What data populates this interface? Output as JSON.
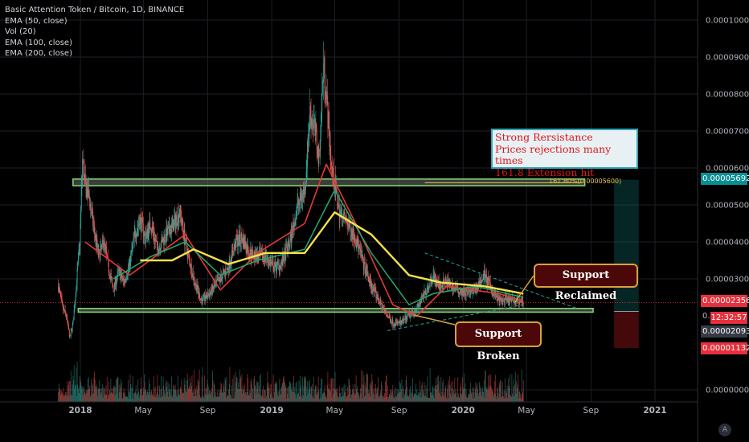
{
  "header": {
    "title": "Basic Attention Token / Bitcoin, 1D, BINANCE",
    "indicators": [
      "EMA (50, close)",
      "Vol (20)",
      "EMA (100, close)",
      "EMA (200, close)"
    ]
  },
  "chart_data": {
    "type": "candlestick",
    "pair": "BAT/BTC",
    "interval": "1D",
    "exchange": "BINANCE",
    "y_axis": {
      "ticks": [
        "0.00010000",
        "0.00009000",
        "0.00008000",
        "0.00007000",
        "0.00006000",
        "0.00005000",
        "0.00004000",
        "0.00003000",
        "0.00000000"
      ],
      "ylim": [
        5e-07,
        0.000104
      ]
    },
    "x_axis": {
      "labels": [
        "2018",
        "May",
        "Sep",
        "2019",
        "May",
        "Sep",
        "2020",
        "May",
        "Sep",
        "2021"
      ]
    },
    "price_path": [
      [
        "2017-11-20",
        2.8e-05
      ],
      [
        "2017-11-28",
        2.2e-05
      ],
      [
        "2017-12-05",
        2e-05
      ],
      [
        "2017-12-12",
        1.4e-05
      ],
      [
        "2017-12-18",
        1.8e-05
      ],
      [
        "2017-12-24",
        2.8e-05
      ],
      [
        "2017-12-31",
        4e-05
      ],
      [
        "2018-01-05",
        6.2e-05
      ],
      [
        "2018-01-10",
        5.5e-05
      ],
      [
        "2018-01-18",
        5.2e-05
      ],
      [
        "2018-01-25",
        4.5e-05
      ],
      [
        "2018-02-05",
        3.6e-05
      ],
      [
        "2018-02-15",
        4e-05
      ],
      [
        "2018-02-25",
        3.2e-05
      ],
      [
        "2018-03-05",
        2.7e-05
      ],
      [
        "2018-03-15",
        3.2e-05
      ],
      [
        "2018-03-25",
        2.9e-05
      ],
      [
        "2018-04-05",
        3.4e-05
      ],
      [
        "2018-04-15",
        4.2e-05
      ],
      [
        "2018-04-25",
        4.6e-05
      ],
      [
        "2018-05-05",
        4.1e-05
      ],
      [
        "2018-05-15",
        4.5e-05
      ],
      [
        "2018-05-28",
        3.8e-05
      ],
      [
        "2018-06-10",
        4.1e-05
      ],
      [
        "2018-06-25",
        4.4e-05
      ],
      [
        "2018-07-10",
        4.8e-05
      ],
      [
        "2018-07-20",
        4e-05
      ],
      [
        "2018-08-05",
        3e-05
      ],
      [
        "2018-08-20",
        2.4e-05
      ],
      [
        "2018-09-05",
        2.6e-05
      ],
      [
        "2018-09-25",
        3e-05
      ],
      [
        "2018-10-10",
        3.3e-05
      ],
      [
        "2018-10-25",
        4e-05
      ],
      [
        "2018-11-05",
        4.1e-05
      ],
      [
        "2018-11-20",
        3.7e-05
      ],
      [
        "2018-12-05",
        3.6e-05
      ],
      [
        "2018-12-20",
        3.6e-05
      ],
      [
        "2019-01-05",
        3.3e-05
      ],
      [
        "2019-01-20",
        3.4e-05
      ],
      [
        "2019-02-05",
        4e-05
      ],
      [
        "2019-02-20",
        5e-05
      ],
      [
        "2019-03-05",
        5.4e-05
      ],
      [
        "2019-03-15",
        7.5e-05
      ],
      [
        "2019-03-25",
        7e-05
      ],
      [
        "2019-04-01",
        6.2e-05
      ],
      [
        "2019-04-10",
        8.8e-05
      ],
      [
        "2019-04-15",
        8e-05
      ],
      [
        "2019-04-25",
        6e-05
      ],
      [
        "2019-05-10",
        4.8e-05
      ],
      [
        "2019-05-25",
        4.5e-05
      ],
      [
        "2019-06-10",
        4.1e-05
      ],
      [
        "2019-06-25",
        3.4e-05
      ],
      [
        "2019-07-10",
        2.8e-05
      ],
      [
        "2019-07-25",
        2.4e-05
      ],
      [
        "2019-08-05",
        2.1e-05
      ],
      [
        "2019-08-20",
        1.8e-05
      ],
      [
        "2019-09-05",
        1.8e-05
      ],
      [
        "2019-09-20",
        2e-05
      ],
      [
        "2019-10-05",
        2.2e-05
      ],
      [
        "2019-10-20",
        2.6e-05
      ],
      [
        "2019-11-05",
        3.1e-05
      ],
      [
        "2019-11-15",
        2.8e-05
      ],
      [
        "2019-12-01",
        2.9e-05
      ],
      [
        "2019-12-20",
        2.7e-05
      ],
      [
        "2020-01-10",
        2.6e-05
      ],
      [
        "2020-01-25",
        2.7e-05
      ],
      [
        "2020-02-10",
        3.1e-05
      ],
      [
        "2020-02-25",
        2.7e-05
      ],
      [
        "2020-03-10",
        2.4e-05
      ],
      [
        "2020-03-25",
        2.4e-05
      ],
      [
        "2020-04-10",
        2.4e-05
      ],
      [
        "2020-04-25",
        2.4e-05
      ]
    ],
    "ema_lines": [
      {
        "name": "EMA (50, close)",
        "color": "#e53935",
        "path": [
          [
            "2018-01-10",
            4e-05
          ],
          [
            "2018-04-05",
            3.1e-05
          ],
          [
            "2018-07-20",
            4.2e-05
          ],
          [
            "2018-09-25",
            2.7e-05
          ],
          [
            "2018-12-05",
            3.7e-05
          ],
          [
            "2019-03-05",
            4.5e-05
          ],
          [
            "2019-04-15",
            6.1e-05
          ],
          [
            "2019-06-10",
            4.5e-05
          ],
          [
            "2019-08-20",
            2.3e-05
          ],
          [
            "2019-10-05",
            2e-05
          ],
          [
            "2019-12-01",
            2.8e-05
          ],
          [
            "2020-03-10",
            2.6e-05
          ],
          [
            "2020-04-25",
            2.4e-05
          ]
        ]
      },
      {
        "name": "EMA (100, close)",
        "color": "#26a269",
        "path": [
          [
            "2018-03-05",
            3e-05
          ],
          [
            "2018-05-15",
            3.6e-05
          ],
          [
            "2018-07-20",
            4e-05
          ],
          [
            "2018-09-25",
            3.1e-05
          ],
          [
            "2018-12-05",
            3.5e-05
          ],
          [
            "2019-03-05",
            3.8e-05
          ],
          [
            "2019-05-01",
            5.4e-05
          ],
          [
            "2019-07-10",
            3.7e-05
          ],
          [
            "2019-09-20",
            2.3e-05
          ],
          [
            "2019-11-05",
            2.6e-05
          ],
          [
            "2020-01-25",
            2.8e-05
          ],
          [
            "2020-04-25",
            2.5e-05
          ]
        ]
      },
      {
        "name": "EMA (200, close)",
        "color": "#f5e14a",
        "path": [
          [
            "2018-04-25",
            3.5e-05
          ],
          [
            "2018-06-25",
            3.5e-05
          ],
          [
            "2018-08-05",
            3.8e-05
          ],
          [
            "2018-10-10",
            3.4e-05
          ],
          [
            "2018-12-20",
            3.7e-05
          ],
          [
            "2019-03-05",
            3.7e-05
          ],
          [
            "2019-05-01",
            4.8e-05
          ],
          [
            "2019-07-10",
            4.2e-05
          ],
          [
            "2019-09-20",
            3.1e-05
          ],
          [
            "2019-11-20",
            2.9e-05
          ],
          [
            "2020-02-10",
            2.8e-05
          ],
          [
            "2020-04-25",
            2.6e-05
          ]
        ]
      }
    ],
    "zones": [
      {
        "name": "resistance",
        "from": "2017-12-18",
        "to": "2020-08-20",
        "low": 5.52e-05,
        "high": 5.7e-05
      },
      {
        "name": "support",
        "from": "2017-12-28",
        "to": "2020-09-05",
        "low": 2.1e-05,
        "high": 2.2e-05
      }
    ],
    "fib_level": {
      "label": "161.80%(0.00005600)",
      "value": 5.6e-05,
      "from": "2019-10-20",
      "to": "2020-08-15"
    },
    "wedge": {
      "upper": [
        [
          "2019-10-20",
          3.7e-05
        ],
        [
          "2020-08-05",
          2.2e-05
        ]
      ],
      "lower": [
        [
          "2019-08-10",
          1.6e-05
        ],
        [
          "2020-04-25",
          2.3e-05
        ]
      ]
    },
    "position_box": {
      "from": "2020-10-15",
      "to": "2020-12-01",
      "entry": 2.12e-05,
      "target": 5.68e-05,
      "stop": 1.13e-05
    },
    "current_price": 2.356e-05,
    "price_tags": [
      {
        "text": "0.00005692",
        "value": 5.692e-05,
        "color": "#0a8f95"
      },
      {
        "text": "0.00002356",
        "value": 2.356e-05,
        "color": "#e6303d"
      },
      {
        "text": "0.00002093",
        "value": 2.093e-05,
        "color": "#363a45"
      },
      {
        "text": "0.00001132",
        "value": 1.132e-05,
        "color": "#e6303d"
      }
    ],
    "countdown": "12:32:57",
    "partial_tick": "0."
  },
  "annotations": {
    "resistance_lines": [
      "Strong Rersistance",
      "Prices rejections many times",
      "161.8 Extension hit"
    ],
    "support_reclaimed": "Support Reclaimed",
    "support_broken": "Support Broken"
  },
  "axis_mode": "A"
}
